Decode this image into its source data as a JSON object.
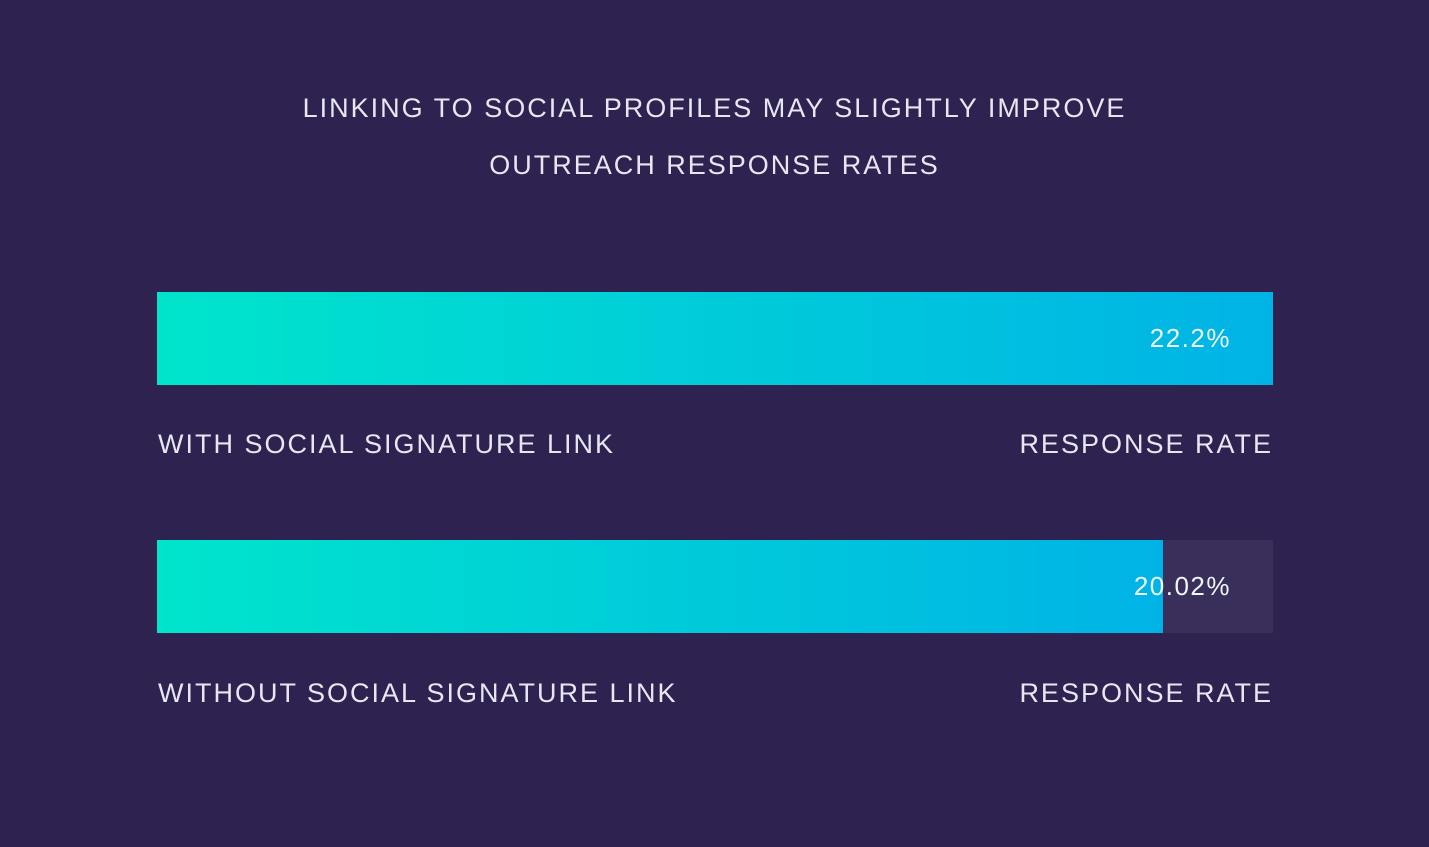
{
  "chart_data": {
    "type": "bar",
    "orientation": "horizontal",
    "title_lines": [
      "LINKING TO SOCIAL PROFILES MAY SLIGHTLY IMPROVE",
      "OUTREACH RESPONSE RATES"
    ],
    "categories": [
      "WITH SOCIAL SIGNATURE LINK",
      "WITHOUT SOCIAL SIGNATURE LINK"
    ],
    "values": [
      22.2,
      20.02
    ],
    "value_labels": [
      "22.2%",
      "20.02%"
    ],
    "metric_labels": [
      "RESPONSE RATE",
      "RESPONSE RATE"
    ],
    "xlim": [
      0,
      22.2
    ],
    "unit": "%",
    "grid": false
  },
  "colors": {
    "background": "#2e2250",
    "track": "#3a2f5b",
    "bar_gradient_start": "#00e5cc",
    "bar_gradient_end": "#00b3e6",
    "text": "#e9e6f1"
  }
}
